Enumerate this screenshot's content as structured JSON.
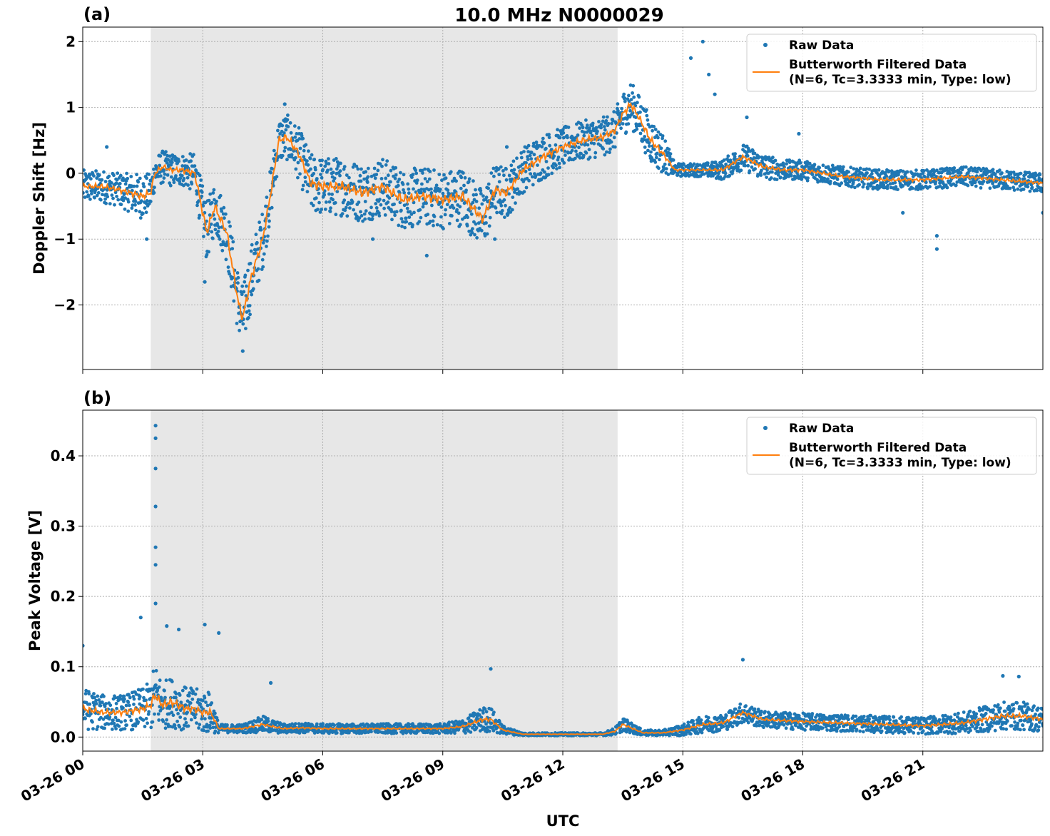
{
  "figure": {
    "title": "10.0 MHz N0000029",
    "xlabel": "UTC"
  },
  "legend": {
    "raw_label": "Raw Data",
    "filtered_label_line1": "Butterworth Filtered Data",
    "filtered_label_line2": "(N=6, Tc=3.3333 min, Type: low)",
    "placement": "top-right"
  },
  "colors": {
    "raw": "#1f77b4",
    "filtered": "#ff7f0e",
    "shade": "#e7e7e7",
    "grid": "#b0b0b0"
  },
  "x_ticks": [
    "03-26 00",
    "03-26 03",
    "03-26 06",
    "03-26 09",
    "03-26 12",
    "03-26 15",
    "03-26 18",
    "03-26 21"
  ],
  "chart_data": [
    {
      "panel": "(a)",
      "type": "scatter",
      "title": "10.0 MHz N0000029",
      "xlabel": "",
      "ylabel": "Doppler Shift [Hz]",
      "x_unit": "hours UTC 2024-03-26",
      "xlim": [
        0,
        24
      ],
      "ylim": [
        -2.98,
        2.22
      ],
      "yticks": [
        -2,
        -1,
        0,
        1,
        2
      ],
      "ytick_labels": [
        "−2",
        "−1",
        "0",
        "1",
        "2"
      ],
      "grid": true,
      "shaded_interval": [
        1.7,
        13.37
      ],
      "series": [
        {
          "name": "Raw Data",
          "style": "points",
          "x": [
            0,
            0.5,
            0.9,
            1.2,
            1.5,
            1.7,
            1.8,
            2.0,
            2.2,
            2.5,
            2.8,
            3.0,
            3.1,
            3.3,
            3.6,
            3.9,
            4.0,
            4.2,
            4.5,
            4.7,
            4.9,
            5.1,
            5.4,
            5.7,
            6.0,
            6.5,
            7.0,
            7.5,
            8.0,
            8.5,
            9.0,
            9.5,
            10.0,
            10.3,
            10.6,
            11.0,
            11.5,
            12.0,
            12.5,
            13.0,
            13.3,
            13.5,
            13.7,
            13.9,
            14.2,
            14.5,
            14.8,
            15.0,
            15.5,
            16.0,
            16.5,
            17.0,
            17.5,
            18.0,
            19.0,
            20.0,
            21.0,
            22.0,
            23.0,
            24.0
          ],
          "y": [
            -0.2,
            -0.2,
            -0.25,
            -0.3,
            -0.35,
            -0.3,
            0.0,
            0.1,
            0.05,
            0.05,
            0.0,
            -0.6,
            -0.9,
            -0.5,
            -0.9,
            -2.0,
            -2.2,
            -1.6,
            -1.0,
            -0.3,
            0.5,
            0.55,
            0.3,
            -0.15,
            -0.2,
            -0.2,
            -0.3,
            -0.2,
            -0.4,
            -0.35,
            -0.4,
            -0.35,
            -0.7,
            -0.25,
            -0.3,
            0.05,
            0.25,
            0.4,
            0.5,
            0.55,
            0.65,
            0.9,
            1.05,
            0.85,
            0.5,
            0.3,
            0.05,
            0.05,
            0.05,
            0.05,
            0.25,
            0.1,
            0.05,
            0.05,
            -0.05,
            -0.1,
            -0.1,
            -0.05,
            -0.1,
            -0.15
          ],
          "spread": [
            0.25,
            0.25,
            0.25,
            0.3,
            0.35,
            0.3,
            0.25,
            0.25,
            0.25,
            0.25,
            0.3,
            0.4,
            0.45,
            0.4,
            0.45,
            0.5,
            0.5,
            0.5,
            0.45,
            0.4,
            0.35,
            0.35,
            0.4,
            0.45,
            0.45,
            0.45,
            0.45,
            0.45,
            0.45,
            0.45,
            0.45,
            0.45,
            0.45,
            0.4,
            0.4,
            0.35,
            0.35,
            0.3,
            0.3,
            0.3,
            0.3,
            0.35,
            0.35,
            0.35,
            0.35,
            0.3,
            0.1,
            0.1,
            0.1,
            0.15,
            0.2,
            0.2,
            0.15,
            0.15,
            0.15,
            0.15,
            0.15,
            0.15,
            0.15,
            0.15
          ],
          "outliers": [
            [
              0.6,
              0.4
            ],
            [
              1.6,
              -1.0
            ],
            [
              3.05,
              -1.65
            ],
            [
              4.0,
              -2.7
            ],
            [
              5.05,
              1.05
            ],
            [
              7.25,
              -1.0
            ],
            [
              8.6,
              -1.25
            ],
            [
              10.3,
              -1.0
            ],
            [
              10.6,
              0.4
            ],
            [
              15.2,
              1.75
            ],
            [
              15.5,
              2.0
            ],
            [
              15.65,
              1.5
            ],
            [
              15.8,
              1.2
            ],
            [
              16.6,
              0.85
            ],
            [
              17.9,
              0.6
            ],
            [
              21.35,
              -0.95
            ],
            [
              21.35,
              -1.15
            ],
            [
              20.5,
              -0.6
            ],
            [
              24.0,
              -0.6
            ]
          ]
        },
        {
          "name": "Butterworth Filtered Data (N=6, Tc=3.3333 min, Type: low)",
          "style": "line",
          "x": [
            0,
            0.5,
            0.9,
            1.2,
            1.5,
            1.7,
            1.8,
            2.0,
            2.2,
            2.5,
            2.8,
            3.0,
            3.1,
            3.3,
            3.6,
            3.9,
            4.0,
            4.2,
            4.5,
            4.7,
            4.9,
            5.1,
            5.4,
            5.7,
            6.0,
            6.5,
            7.0,
            7.5,
            8.0,
            8.5,
            9.0,
            9.5,
            10.0,
            10.3,
            10.6,
            11.0,
            11.5,
            12.0,
            12.5,
            13.0,
            13.3,
            13.5,
            13.7,
            13.9,
            14.2,
            14.5,
            14.8,
            15.0,
            15.5,
            16.0,
            16.5,
            17.0,
            17.5,
            18.0,
            19.0,
            20.0,
            21.0,
            22.0,
            23.0,
            24.0
          ],
          "y": [
            -0.2,
            -0.2,
            -0.25,
            -0.3,
            -0.35,
            -0.3,
            0.0,
            0.1,
            0.05,
            0.05,
            0.0,
            -0.6,
            -0.9,
            -0.5,
            -0.9,
            -2.0,
            -2.2,
            -1.6,
            -1.0,
            -0.3,
            0.5,
            0.55,
            0.3,
            -0.15,
            -0.2,
            -0.2,
            -0.3,
            -0.2,
            -0.4,
            -0.35,
            -0.4,
            -0.35,
            -0.7,
            -0.25,
            -0.3,
            0.05,
            0.25,
            0.4,
            0.5,
            0.55,
            0.65,
            0.9,
            1.05,
            0.85,
            0.5,
            0.3,
            0.05,
            0.05,
            0.05,
            0.05,
            0.25,
            0.1,
            0.05,
            0.05,
            -0.05,
            -0.1,
            -0.1,
            -0.05,
            -0.1,
            -0.15
          ]
        }
      ]
    },
    {
      "panel": "(b)",
      "type": "scatter",
      "title": "",
      "xlabel": "UTC",
      "ylabel": "Peak Voltage [V]",
      "x_unit": "hours UTC 2024-03-26",
      "xlim": [
        0,
        24
      ],
      "ylim": [
        -0.02,
        0.465
      ],
      "yticks": [
        0.0,
        0.1,
        0.2,
        0.3,
        0.4
      ],
      "ytick_labels": [
        "0.0",
        "0.1",
        "0.2",
        "0.3",
        "0.4"
      ],
      "grid": true,
      "shaded_interval": [
        1.7,
        13.37
      ],
      "series": [
        {
          "name": "Raw Data",
          "style": "points",
          "x": [
            0,
            0.5,
            1.0,
            1.5,
            1.7,
            1.8,
            2.0,
            2.2,
            2.4,
            2.6,
            2.8,
            3.0,
            3.2,
            3.4,
            3.5,
            4.0,
            4.5,
            5.0,
            5.5,
            6.0,
            7.0,
            8.0,
            9.0,
            9.5,
            10.0,
            10.2,
            10.5,
            11.0,
            12.0,
            13.0,
            13.3,
            13.5,
            14.0,
            14.5,
            15.0,
            15.5,
            16.0,
            16.5,
            17.0,
            18.0,
            19.0,
            20.0,
            21.0,
            22.0,
            22.5,
            23.0,
            23.5,
            24.0
          ],
          "y": [
            0.04,
            0.035,
            0.035,
            0.04,
            0.045,
            0.06,
            0.045,
            0.05,
            0.045,
            0.04,
            0.04,
            0.035,
            0.035,
            0.012,
            0.012,
            0.012,
            0.018,
            0.012,
            0.013,
            0.012,
            0.012,
            0.012,
            0.012,
            0.015,
            0.025,
            0.025,
            0.01,
            0.004,
            0.004,
            0.004,
            0.008,
            0.018,
            0.006,
            0.006,
            0.01,
            0.018,
            0.02,
            0.035,
            0.025,
            0.022,
            0.02,
            0.018,
            0.016,
            0.02,
            0.025,
            0.03,
            0.03,
            0.025
          ],
          "spread": [
            0.03,
            0.025,
            0.025,
            0.03,
            0.035,
            0.045,
            0.035,
            0.035,
            0.035,
            0.03,
            0.03,
            0.03,
            0.03,
            0.006,
            0.006,
            0.006,
            0.012,
            0.007,
            0.007,
            0.007,
            0.007,
            0.007,
            0.007,
            0.01,
            0.018,
            0.018,
            0.006,
            0.002,
            0.002,
            0.002,
            0.005,
            0.01,
            0.004,
            0.004,
            0.008,
            0.012,
            0.012,
            0.015,
            0.012,
            0.012,
            0.012,
            0.012,
            0.012,
            0.015,
            0.018,
            0.02,
            0.02,
            0.018
          ],
          "outliers": [
            [
              1.82,
              0.443
            ],
            [
              1.82,
              0.425
            ],
            [
              1.82,
              0.382
            ],
            [
              1.82,
              0.328
            ],
            [
              1.82,
              0.27
            ],
            [
              1.82,
              0.245
            ],
            [
              1.82,
              0.19
            ],
            [
              1.45,
              0.17
            ],
            [
              2.1,
              0.158
            ],
            [
              2.4,
              0.153
            ],
            [
              3.05,
              0.16
            ],
            [
              3.4,
              0.148
            ],
            [
              0.0,
              0.13
            ],
            [
              4.7,
              0.077
            ],
            [
              10.2,
              0.097
            ],
            [
              16.5,
              0.11
            ],
            [
              23.0,
              0.087
            ],
            [
              23.4,
              0.086
            ]
          ]
        },
        {
          "name": "Butterworth Filtered Data (N=6, Tc=3.3333 min, Type: low)",
          "style": "line",
          "x": [
            0,
            0.5,
            1.0,
            1.5,
            1.7,
            1.8,
            2.0,
            2.2,
            2.4,
            2.6,
            2.8,
            3.0,
            3.2,
            3.4,
            3.5,
            4.0,
            4.5,
            5.0,
            5.5,
            6.0,
            7.0,
            8.0,
            9.0,
            9.5,
            10.0,
            10.2,
            10.5,
            11.0,
            12.0,
            13.0,
            13.3,
            13.5,
            14.0,
            14.5,
            15.0,
            15.5,
            16.0,
            16.5,
            17.0,
            18.0,
            19.0,
            20.0,
            21.0,
            22.0,
            22.5,
            23.0,
            23.5,
            24.0
          ],
          "y": [
            0.04,
            0.035,
            0.035,
            0.04,
            0.045,
            0.06,
            0.045,
            0.05,
            0.045,
            0.04,
            0.04,
            0.035,
            0.035,
            0.012,
            0.012,
            0.012,
            0.018,
            0.012,
            0.013,
            0.012,
            0.012,
            0.012,
            0.012,
            0.015,
            0.025,
            0.025,
            0.01,
            0.004,
            0.004,
            0.004,
            0.008,
            0.018,
            0.006,
            0.006,
            0.01,
            0.018,
            0.02,
            0.035,
            0.025,
            0.022,
            0.02,
            0.018,
            0.016,
            0.02,
            0.025,
            0.03,
            0.03,
            0.025
          ]
        }
      ]
    }
  ]
}
